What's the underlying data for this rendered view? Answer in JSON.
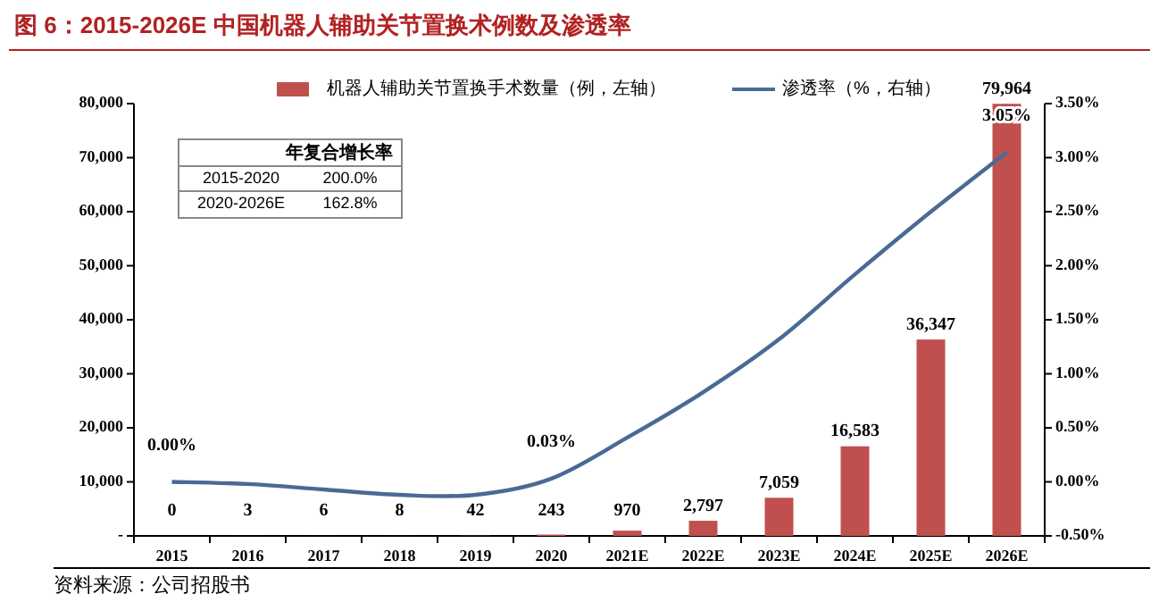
{
  "chart_data": {
    "type": "bar",
    "title": "图 6：2015-2026E 中国机器人辅助关节置换术例数及渗透率",
    "categories": [
      "2015",
      "2016",
      "2017",
      "2018",
      "2019",
      "2020",
      "2021E",
      "2022E",
      "2023E",
      "2024E",
      "2025E",
      "2026E"
    ],
    "series": [
      {
        "name": "机器人辅助关节置换手术数量（例，左轴）",
        "color": "#c0504d",
        "values": [
          0,
          3,
          6,
          8,
          42,
          243,
          970,
          2797,
          7059,
          16583,
          36347,
          79964
        ],
        "value_labels": [
          "0",
          "3",
          "6",
          "8",
          "42",
          "243",
          "970",
          "2,797",
          "7,059",
          "16,583",
          "36,347",
          "79,964"
        ]
      },
      {
        "name": "渗透率（%，右轴）",
        "type": "line",
        "axis": "y2",
        "color": "#4a6a95",
        "values": [
          0.0,
          -0.02,
          -0.07,
          -0.12,
          -0.12,
          0.03,
          0.41,
          0.83,
          1.32,
          1.92,
          2.5,
          3.05
        ],
        "value_labels": [
          "0.00%",
          null,
          null,
          null,
          null,
          "0.03%",
          null,
          null,
          null,
          null,
          null,
          "3.05%"
        ]
      }
    ],
    "ylim": [
      0,
      80000
    ],
    "yticks": [
      {
        "value": 0,
        "label": "-"
      },
      {
        "value": 10000,
        "label": "10,000"
      },
      {
        "value": 20000,
        "label": "20,000"
      },
      {
        "value": 30000,
        "label": "30,000"
      },
      {
        "value": 40000,
        "label": "40,000"
      },
      {
        "value": 50000,
        "label": "50,000"
      },
      {
        "value": 60000,
        "label": "60,000"
      },
      {
        "value": 70000,
        "label": "70,000"
      },
      {
        "value": 80000,
        "label": "80,000"
      }
    ],
    "y2lim": [
      -0.5,
      3.5
    ],
    "y2ticks": [
      {
        "value": -0.5,
        "label": "-0.50%"
      },
      {
        "value": 0,
        "label": "0.00%"
      },
      {
        "value": 0.5,
        "label": "0.50%"
      },
      {
        "value": 1,
        "label": "1.00%"
      },
      {
        "value": 1.5,
        "label": "1.50%"
      },
      {
        "value": 2,
        "label": "2.00%"
      },
      {
        "value": 2.5,
        "label": "2.50%"
      },
      {
        "value": 3,
        "label": "3.00%"
      },
      {
        "value": 3.5,
        "label": "3.50%"
      }
    ],
    "legend": "top",
    "grid": false,
    "marker": "none",
    "annotations": [
      "年复合增长率",
      "2015-2020",
      "200.0%",
      "2020-2026E",
      "162.8%",
      "资料来源：公司招股书"
    ]
  }
}
